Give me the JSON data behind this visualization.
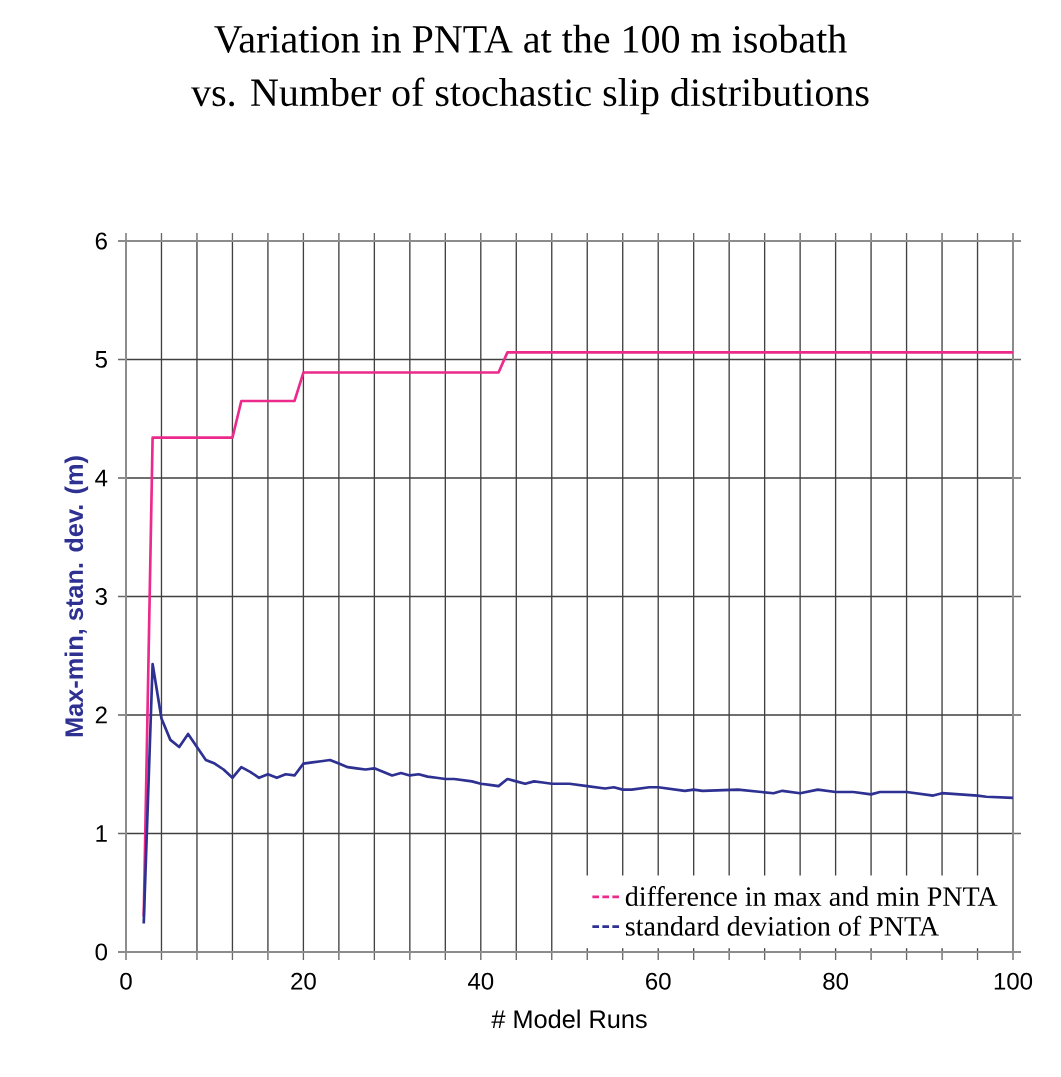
{
  "chart_data": {
    "type": "line",
    "title": "Variation in PNTA at the 100 m isobath",
    "subtitle": "vs. Number of stochastic slip distributions",
    "xlabel": "# Model Runs",
    "ylabel": "Max-min, stan. dev. (m)",
    "xlim": [
      0,
      100
    ],
    "ylim": [
      0,
      6
    ],
    "xticks": [
      0,
      {
        "value": 4,
        "label": null
      },
      {
        "value": 8,
        "label": null
      },
      {
        "value": 12,
        "label": null
      },
      {
        "value": 16,
        "label": null
      },
      20,
      {
        "value": 24,
        "label": null
      },
      {
        "value": 28,
        "label": null
      },
      {
        "value": 32,
        "label": null
      },
      {
        "value": 36,
        "label": null
      },
      40,
      {
        "value": 44,
        "label": null
      },
      {
        "value": 48,
        "label": null
      },
      {
        "value": 52,
        "label": null
      },
      {
        "value": 56,
        "label": null
      },
      60,
      {
        "value": 64,
        "label": null
      },
      {
        "value": 68,
        "label": null
      },
      {
        "value": 72,
        "label": null
      },
      {
        "value": 76,
        "label": null
      },
      80,
      {
        "value": 84,
        "label": null
      },
      {
        "value": 88,
        "label": null
      },
      {
        "value": 92,
        "label": null
      },
      {
        "value": 96,
        "label": null
      },
      100
    ],
    "yticks": [
      0,
      1,
      2,
      3,
      4,
      5,
      6
    ],
    "grid": true,
    "legend": "bottom right",
    "marker": "none",
    "series": [
      {
        "name": "difference in max and min PNTA",
        "color": "#ec2a8c",
        "x": [
          2,
          3,
          12,
          13,
          19,
          20,
          42,
          43,
          100
        ],
        "values": [
          0.3,
          4.34,
          4.34,
          4.65,
          4.65,
          4.89,
          4.89,
          5.06,
          5.06
        ]
      },
      {
        "name": "standard deviation of PNTA",
        "color": "#2e3192",
        "x": [
          2,
          3,
          4,
          5,
          6,
          7,
          8,
          9,
          10,
          11,
          12,
          13,
          14,
          15,
          16,
          17,
          18,
          19,
          20,
          21,
          22,
          23,
          24,
          25,
          26,
          27,
          28,
          29,
          30,
          31,
          32,
          33,
          34,
          35,
          36,
          37,
          38,
          39,
          40,
          41,
          42,
          43,
          44,
          45,
          46,
          47,
          48,
          50,
          52,
          54,
          55,
          56,
          57,
          59,
          60,
          63,
          64,
          65,
          69,
          73,
          74,
          76,
          78,
          80,
          82,
          84,
          85,
          88,
          91,
          92,
          96,
          97,
          100
        ],
        "values": [
          0.24,
          2.43,
          1.97,
          1.79,
          1.73,
          1.84,
          1.73,
          1.62,
          1.59,
          1.54,
          1.47,
          1.56,
          1.52,
          1.47,
          1.5,
          1.47,
          1.5,
          1.49,
          1.59,
          1.6,
          1.61,
          1.62,
          1.59,
          1.56,
          1.55,
          1.54,
          1.55,
          1.52,
          1.49,
          1.51,
          1.49,
          1.5,
          1.48,
          1.47,
          1.46,
          1.46,
          1.45,
          1.44,
          1.42,
          1.41,
          1.4,
          1.46,
          1.44,
          1.42,
          1.44,
          1.43,
          1.42,
          1.42,
          1.4,
          1.38,
          1.39,
          1.37,
          1.37,
          1.39,
          1.39,
          1.36,
          1.37,
          1.36,
          1.37,
          1.34,
          1.36,
          1.34,
          1.37,
          1.35,
          1.35,
          1.33,
          1.35,
          1.35,
          1.32,
          1.34,
          1.32,
          1.31,
          1.3
        ]
      }
    ]
  }
}
